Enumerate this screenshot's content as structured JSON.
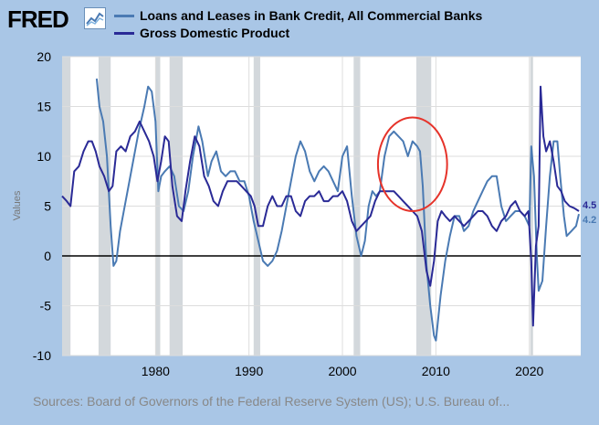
{
  "header": {
    "logo_text": "FRED",
    "logo_icon": "line-chart-icon"
  },
  "source_text": "Sources: Board of Governors of the Federal Reserve System (US); U.S. Bureau of...",
  "colors": {
    "background": "#a9c6e6",
    "loans": "#4a7ab3",
    "gdp": "#2a2a96",
    "recession": "#d3d8dc",
    "annotation_circle": "#e6332a"
  },
  "chart_data": {
    "type": "line",
    "title": "",
    "xlabel": "",
    "ylabel": "Values",
    "xlim": [
      1970,
      2025.5
    ],
    "ylim": [
      -10,
      20
    ],
    "xticks": [
      1980,
      1990,
      2000,
      2010,
      2020
    ],
    "yticks": [
      -10,
      -5,
      0,
      5,
      10,
      15,
      20
    ],
    "grid": true,
    "legend_position": "top",
    "recessions": [
      [
        1970,
        1970.9
      ],
      [
        1973.9,
        1975.2
      ],
      [
        1980.0,
        1980.5
      ],
      [
        1981.5,
        1982.9
      ],
      [
        1990.5,
        1991.2
      ],
      [
        2001.2,
        2001.9
      ],
      [
        2007.9,
        2009.5
      ],
      [
        2020.1,
        2020.4
      ]
    ],
    "annotation": {
      "shape": "circle",
      "center": [
        2007.5,
        9.2
      ],
      "radius_x": 3.7,
      "radius_y": 4.7
    },
    "series": [
      {
        "name": "Loans and Leases in Bank Credit, All Commercial Banks",
        "color": "#4a7ab3",
        "end_label": "4.2",
        "points": [
          [
            1973.7,
            17.8
          ],
          [
            1974.0,
            15.0
          ],
          [
            1974.4,
            13.5
          ],
          [
            1974.8,
            10.0
          ],
          [
            1975.2,
            3.0
          ],
          [
            1975.5,
            -1.0
          ],
          [
            1975.8,
            -0.5
          ],
          [
            1976.2,
            2.5
          ],
          [
            1976.7,
            5.0
          ],
          [
            1977.2,
            7.5
          ],
          [
            1977.7,
            10.0
          ],
          [
            1978.2,
            12.5
          ],
          [
            1978.8,
            15.0
          ],
          [
            1979.2,
            17.0
          ],
          [
            1979.6,
            16.5
          ],
          [
            1980.0,
            13.5
          ],
          [
            1980.3,
            6.5
          ],
          [
            1980.6,
            8.0
          ],
          [
            1981.0,
            8.5
          ],
          [
            1981.5,
            9.0
          ],
          [
            1982.0,
            8.0
          ],
          [
            1982.5,
            5.0
          ],
          [
            1983.0,
            4.5
          ],
          [
            1983.5,
            6.5
          ],
          [
            1984.0,
            10.0
          ],
          [
            1984.6,
            13.0
          ],
          [
            1985.0,
            11.5
          ],
          [
            1985.6,
            8.0
          ],
          [
            1986.0,
            9.5
          ],
          [
            1986.5,
            10.5
          ],
          [
            1987.0,
            8.5
          ],
          [
            1987.5,
            8.0
          ],
          [
            1988.0,
            8.5
          ],
          [
            1988.5,
            8.5
          ],
          [
            1989.0,
            7.5
          ],
          [
            1989.5,
            7.5
          ],
          [
            1990.0,
            6.0
          ],
          [
            1990.5,
            3.5
          ],
          [
            1991.0,
            1.5
          ],
          [
            1991.5,
            -0.5
          ],
          [
            1992.0,
            -1.0
          ],
          [
            1992.5,
            -0.5
          ],
          [
            1993.0,
            0.5
          ],
          [
            1993.5,
            2.5
          ],
          [
            1994.0,
            5.0
          ],
          [
            1994.5,
            7.5
          ],
          [
            1995.0,
            10.0
          ],
          [
            1995.5,
            11.5
          ],
          [
            1996.0,
            10.5
          ],
          [
            1996.5,
            8.5
          ],
          [
            1997.0,
            7.5
          ],
          [
            1997.5,
            8.5
          ],
          [
            1998.0,
            9.0
          ],
          [
            1998.5,
            8.5
          ],
          [
            1999.0,
            7.5
          ],
          [
            1999.5,
            6.5
          ],
          [
            2000.0,
            10.0
          ],
          [
            2000.5,
            11.0
          ],
          [
            2001.0,
            6.0
          ],
          [
            2001.5,
            2.0
          ],
          [
            2002.0,
            0.0
          ],
          [
            2002.4,
            1.5
          ],
          [
            2002.8,
            5.0
          ],
          [
            2003.2,
            6.5
          ],
          [
            2003.6,
            6.0
          ],
          [
            2004.0,
            6.5
          ],
          [
            2004.5,
            10.0
          ],
          [
            2005.0,
            12.0
          ],
          [
            2005.5,
            12.5
          ],
          [
            2006.0,
            12.0
          ],
          [
            2006.5,
            11.5
          ],
          [
            2007.0,
            10.0
          ],
          [
            2007.5,
            11.5
          ],
          [
            2008.0,
            11.0
          ],
          [
            2008.3,
            10.5
          ],
          [
            2008.6,
            7.0
          ],
          [
            2009.0,
            -1.0
          ],
          [
            2009.4,
            -5.0
          ],
          [
            2009.8,
            -8.0
          ],
          [
            2010.0,
            -8.5
          ],
          [
            2010.5,
            -4.0
          ],
          [
            2011.0,
            -0.5
          ],
          [
            2011.5,
            2.0
          ],
          [
            2012.0,
            4.0
          ],
          [
            2012.5,
            4.0
          ],
          [
            2013.0,
            2.5
          ],
          [
            2013.5,
            3.0
          ],
          [
            2014.0,
            4.5
          ],
          [
            2014.5,
            5.5
          ],
          [
            2015.0,
            6.5
          ],
          [
            2015.5,
            7.5
          ],
          [
            2016.0,
            8.0
          ],
          [
            2016.5,
            8.0
          ],
          [
            2017.0,
            5.0
          ],
          [
            2017.5,
            3.5
          ],
          [
            2018.0,
            4.0
          ],
          [
            2018.5,
            4.5
          ],
          [
            2019.0,
            4.5
          ],
          [
            2019.5,
            4.0
          ],
          [
            2020.0,
            3.0
          ],
          [
            2020.2,
            11.0
          ],
          [
            2020.5,
            8.0
          ],
          [
            2020.8,
            0.0
          ],
          [
            2021.0,
            -3.5
          ],
          [
            2021.4,
            -2.5
          ],
          [
            2021.8,
            3.0
          ],
          [
            2022.2,
            8.0
          ],
          [
            2022.6,
            11.5
          ],
          [
            2023.0,
            11.5
          ],
          [
            2023.3,
            8.0
          ],
          [
            2023.7,
            4.0
          ],
          [
            2024.0,
            2.0
          ],
          [
            2024.5,
            2.5
          ],
          [
            2025.0,
            3.0
          ],
          [
            2025.3,
            4.2
          ]
        ]
      },
      {
        "name": "Gross Domestic Product",
        "color": "#2a2a96",
        "end_label": "4.5",
        "points": [
          [
            1970.0,
            6.0
          ],
          [
            1970.5,
            5.5
          ],
          [
            1970.9,
            5.0
          ],
          [
            1971.3,
            8.5
          ],
          [
            1971.8,
            9.0
          ],
          [
            1972.3,
            10.5
          ],
          [
            1972.8,
            11.5
          ],
          [
            1973.2,
            11.5
          ],
          [
            1973.6,
            10.5
          ],
          [
            1974.0,
            9.0
          ],
          [
            1974.5,
            8.0
          ],
          [
            1975.0,
            6.5
          ],
          [
            1975.4,
            7.0
          ],
          [
            1975.8,
            10.5
          ],
          [
            1976.3,
            11.0
          ],
          [
            1976.8,
            10.5
          ],
          [
            1977.3,
            12.0
          ],
          [
            1977.8,
            12.5
          ],
          [
            1978.3,
            13.5
          ],
          [
            1978.8,
            12.5
          ],
          [
            1979.3,
            11.5
          ],
          [
            1979.8,
            10.0
          ],
          [
            1980.2,
            7.5
          ],
          [
            1980.6,
            9.5
          ],
          [
            1981.0,
            12.0
          ],
          [
            1981.4,
            11.5
          ],
          [
            1981.8,
            7.0
          ],
          [
            1982.3,
            4.0
          ],
          [
            1982.8,
            3.5
          ],
          [
            1983.2,
            6.5
          ],
          [
            1983.7,
            9.5
          ],
          [
            1984.2,
            12.0
          ],
          [
            1984.7,
            11.0
          ],
          [
            1985.2,
            8.0
          ],
          [
            1985.7,
            7.0
          ],
          [
            1986.2,
            5.5
          ],
          [
            1986.7,
            5.0
          ],
          [
            1987.2,
            6.5
          ],
          [
            1987.7,
            7.5
          ],
          [
            1988.2,
            7.5
          ],
          [
            1988.7,
            7.5
          ],
          [
            1989.2,
            7.0
          ],
          [
            1989.7,
            6.5
          ],
          [
            1990.2,
            6.0
          ],
          [
            1990.6,
            5.0
          ],
          [
            1991.0,
            3.0
          ],
          [
            1991.5,
            3.0
          ],
          [
            1992.0,
            5.0
          ],
          [
            1992.5,
            6.0
          ],
          [
            1993.0,
            5.0
          ],
          [
            1993.5,
            5.0
          ],
          [
            1994.0,
            6.0
          ],
          [
            1994.5,
            6.0
          ],
          [
            1995.0,
            4.5
          ],
          [
            1995.5,
            4.0
          ],
          [
            1996.0,
            5.5
          ],
          [
            1996.5,
            6.0
          ],
          [
            1997.0,
            6.0
          ],
          [
            1997.5,
            6.5
          ],
          [
            1998.0,
            5.5
          ],
          [
            1998.5,
            5.5
          ],
          [
            1999.0,
            6.0
          ],
          [
            1999.5,
            6.0
          ],
          [
            2000.0,
            6.5
          ],
          [
            2000.5,
            5.5
          ],
          [
            2001.0,
            3.5
          ],
          [
            2001.5,
            2.5
          ],
          [
            2002.0,
            3.0
          ],
          [
            2002.5,
            3.5
          ],
          [
            2003.0,
            4.0
          ],
          [
            2003.5,
            5.5
          ],
          [
            2004.0,
            6.5
          ],
          [
            2004.5,
            6.5
          ],
          [
            2005.0,
            6.5
          ],
          [
            2005.5,
            6.5
          ],
          [
            2006.0,
            6.0
          ],
          [
            2006.5,
            5.5
          ],
          [
            2007.0,
            5.0
          ],
          [
            2007.5,
            4.5
          ],
          [
            2008.0,
            4.0
          ],
          [
            2008.5,
            2.5
          ],
          [
            2009.0,
            -1.5
          ],
          [
            2009.4,
            -3.0
          ],
          [
            2009.8,
            -0.5
          ],
          [
            2010.2,
            3.5
          ],
          [
            2010.6,
            4.5
          ],
          [
            2011.0,
            4.0
          ],
          [
            2011.5,
            3.5
          ],
          [
            2012.0,
            4.0
          ],
          [
            2012.5,
            3.5
          ],
          [
            2013.0,
            3.0
          ],
          [
            2013.5,
            3.5
          ],
          [
            2014.0,
            4.0
          ],
          [
            2014.5,
            4.5
          ],
          [
            2015.0,
            4.5
          ],
          [
            2015.5,
            4.0
          ],
          [
            2016.0,
            3.0
          ],
          [
            2016.5,
            2.5
          ],
          [
            2017.0,
            3.5
          ],
          [
            2017.5,
            4.0
          ],
          [
            2018.0,
            5.0
          ],
          [
            2018.5,
            5.5
          ],
          [
            2019.0,
            4.5
          ],
          [
            2019.5,
            4.0
          ],
          [
            2019.9,
            4.5
          ],
          [
            2020.2,
            -0.5
          ],
          [
            2020.4,
            -7.0
          ],
          [
            2020.7,
            1.0
          ],
          [
            2021.0,
            3.0
          ],
          [
            2021.2,
            17.0
          ],
          [
            2021.5,
            12.0
          ],
          [
            2021.8,
            10.5
          ],
          [
            2022.2,
            11.5
          ],
          [
            2022.6,
            9.5
          ],
          [
            2023.0,
            7.0
          ],
          [
            2023.4,
            6.5
          ],
          [
            2023.8,
            5.5
          ],
          [
            2024.3,
            5.0
          ],
          [
            2024.8,
            4.8
          ],
          [
            2025.3,
            4.5
          ]
        ]
      }
    ]
  }
}
